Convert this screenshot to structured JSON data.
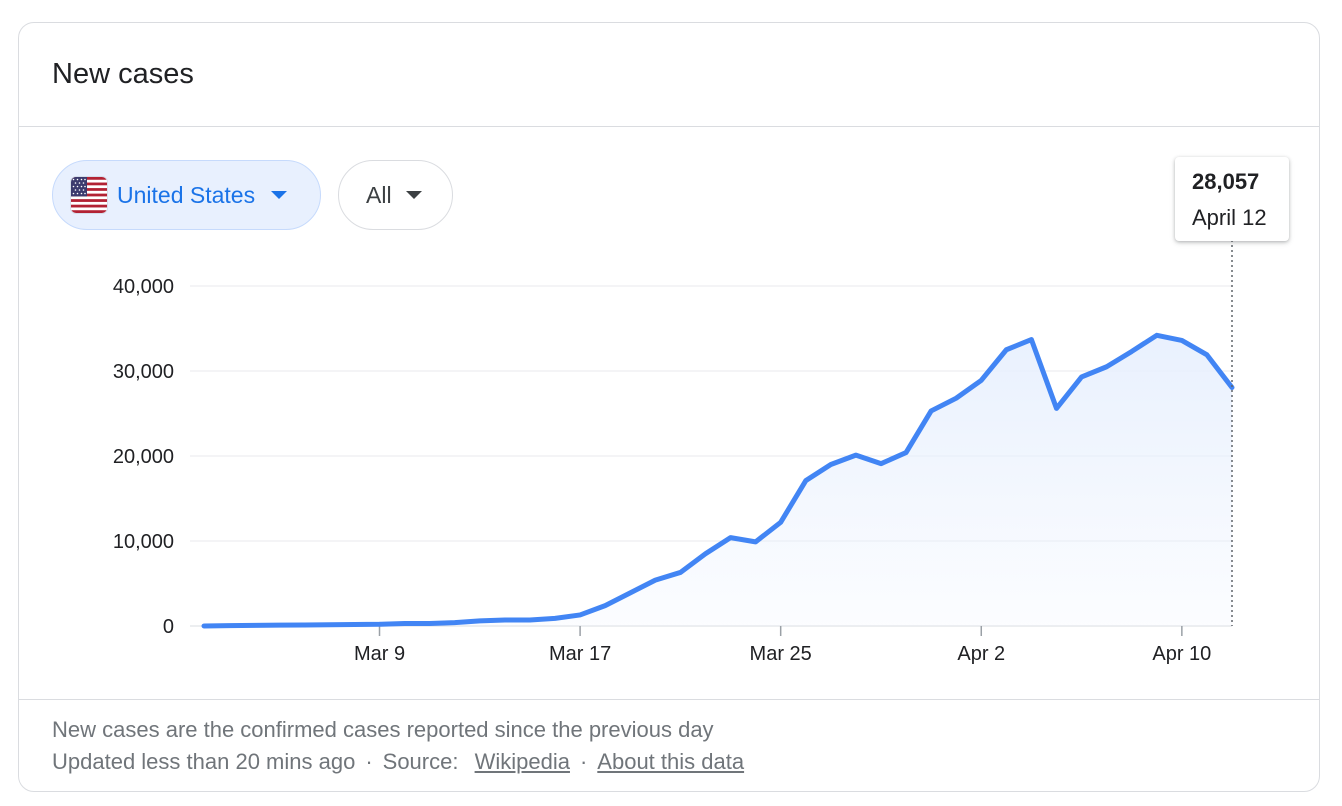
{
  "card": {
    "title": "New cases"
  },
  "filters": {
    "country": {
      "label": "United States",
      "flag_icon": "us-flag-icon"
    },
    "range": {
      "label": "All"
    }
  },
  "tooltip": {
    "value": "28,057",
    "date": "April 12"
  },
  "footer": {
    "note": "New cases are the confirmed cases reported since the previous day",
    "updated": "Updated less than 20 mins ago",
    "source_label": "Source:",
    "source_link": "Wikipedia",
    "about_link": "About this data",
    "separator": "·"
  },
  "colors": {
    "line": "#4285f4",
    "fill_top": "#e8f0fe",
    "grid": "#e8eaed",
    "chip_active": "#1a73e8"
  },
  "chart_data": {
    "type": "area",
    "x": [
      "Mar 2",
      "Mar 3",
      "Mar 4",
      "Mar 5",
      "Mar 6",
      "Mar 7",
      "Mar 8",
      "Mar 9",
      "Mar 10",
      "Mar 11",
      "Mar 12",
      "Mar 13",
      "Mar 14",
      "Mar 15",
      "Mar 16",
      "Mar 17",
      "Mar 18",
      "Mar 19",
      "Mar 20",
      "Mar 21",
      "Mar 22",
      "Mar 23",
      "Mar 24",
      "Mar 25",
      "Mar 26",
      "Mar 27",
      "Mar 28",
      "Mar 29",
      "Mar 30",
      "Mar 31",
      "Apr 1",
      "Apr 2",
      "Apr 3",
      "Apr 4",
      "Apr 5",
      "Apr 6",
      "Apr 7",
      "Apr 8",
      "Apr 9",
      "Apr 10",
      "Apr 11",
      "Apr 12"
    ],
    "values": [
      0,
      50,
      80,
      100,
      120,
      150,
      170,
      200,
      300,
      300,
      400,
      600,
      700,
      700,
      900,
      1300,
      2400,
      3900,
      5400,
      6300,
      8500,
      10400,
      9900,
      12200,
      17100,
      19000,
      20100,
      19100,
      20400,
      25300,
      26800,
      28900,
      32500,
      33700,
      25600,
      29300,
      30500,
      32300,
      34200,
      33600,
      31900,
      28057
    ],
    "ylim": [
      0,
      40000
    ],
    "yticks": [
      0,
      10000,
      20000,
      30000,
      40000
    ],
    "ytick_labels": [
      "0",
      "10,000",
      "20,000",
      "30,000",
      "40,000"
    ],
    "xtick_labels": [
      "Mar 9",
      "Mar 17",
      "Mar 25",
      "Apr 2",
      "Apr 10"
    ],
    "xtick_indices": [
      7,
      15,
      23,
      31,
      39
    ],
    "highlight_index": 41,
    "grid": true
  }
}
